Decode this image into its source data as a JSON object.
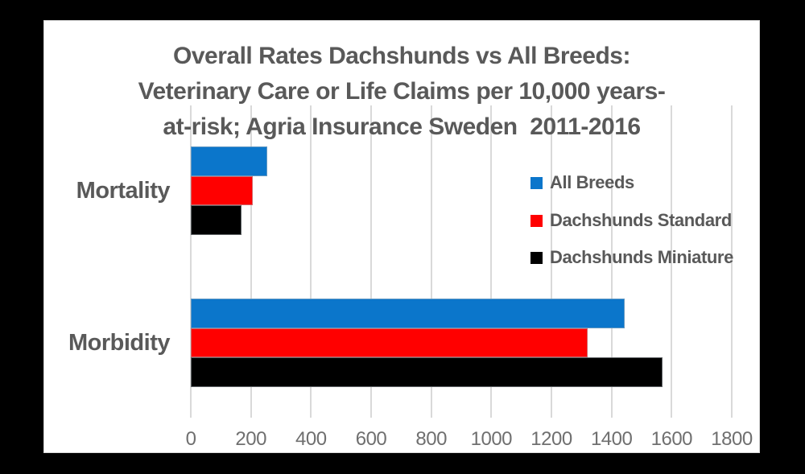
{
  "window": {
    "background": "#000000",
    "panel_background": "#ffffff"
  },
  "chart_data": {
    "type": "bar",
    "orientation": "horizontal",
    "title": "Overall Rates Dachshunds vs All Breeds: Veterinary Care or Life Claims per 10,000 years-at-risk; Agria Insurance Sweden 2011-2016",
    "title_lines": [
      "Overall Rates Dachshunds vs All Breeds:",
      "Veterinary Care or Life Claims per 10,000 years-",
      "at-risk; Agria Insurance Sweden  2011-2016"
    ],
    "categories": [
      "Mortality",
      "Morbidity"
    ],
    "series": [
      {
        "name": "All Breeds",
        "color": "#0b76cb",
        "values": [
          255,
          1445
        ]
      },
      {
        "name": "Dachshunds Standard",
        "color": "#ff0000",
        "values": [
          205,
          1320
        ]
      },
      {
        "name": "Dachshunds Miniature",
        "color": "#000000",
        "values": [
          168,
          1570
        ]
      }
    ],
    "xlabel": "",
    "ylabel": "",
    "xlim": [
      0,
      1800
    ],
    "x_ticks": [
      0,
      200,
      400,
      600,
      800,
      1000,
      1200,
      1400,
      1600,
      1800
    ],
    "grid": true,
    "legend_position": "middle-right",
    "colors": {
      "title_text": "#595959",
      "category_text": "#595959",
      "legend_text": "#595959",
      "tick_text": "#6f6f6f",
      "gridline": "#d9d9d9"
    }
  }
}
